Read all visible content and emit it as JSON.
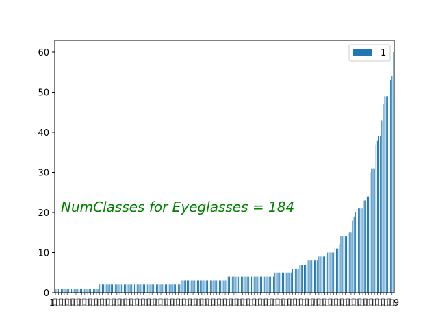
{
  "chart_data": {
    "type": "bar",
    "orientation": "vertical",
    "x_tick_labels_legible": false,
    "ylim": [
      0,
      62.9
    ],
    "yticks": [
      0,
      10,
      20,
      30,
      40,
      50,
      60
    ],
    "xtick_first": "1",
    "xtick_last": "9",
    "bar_color": "#1f77b4",
    "legend": {
      "position": "top-right",
      "label": "1"
    },
    "annotation": {
      "text": "NumClasses for Eyeglasses = 184",
      "color": "#008000"
    },
    "series": [
      {
        "name": "1",
        "values": [
          1,
          1,
          1,
          1,
          1,
          1,
          1,
          1,
          1,
          1,
          1,
          1,
          1,
          1,
          1,
          1,
          1,
          1,
          1,
          1,
          1,
          1,
          1,
          1,
          1,
          1,
          1,
          1,
          1,
          1,
          2,
          2,
          2,
          2,
          2,
          2,
          2,
          2,
          2,
          2,
          2,
          2,
          2,
          2,
          2,
          2,
          2,
          2,
          2,
          2,
          2,
          2,
          2,
          2,
          2,
          2,
          2,
          2,
          2,
          2,
          2,
          2,
          2,
          2,
          2,
          2,
          2,
          2,
          2,
          2,
          2,
          2,
          2,
          2,
          2,
          2,
          2,
          2,
          2,
          2,
          2,
          2,
          2,
          2,
          2,
          2,
          3,
          3,
          3,
          3,
          3,
          3,
          3,
          3,
          3,
          3,
          3,
          3,
          3,
          3,
          3,
          3,
          3,
          3,
          3,
          3,
          3,
          3,
          3,
          3,
          3,
          3,
          3,
          3,
          3,
          3,
          3,
          3,
          4,
          4,
          4,
          4,
          4,
          4,
          4,
          4,
          4,
          4,
          4,
          4,
          4,
          4,
          4,
          4,
          4,
          4,
          4,
          4,
          4,
          4,
          4,
          4,
          4,
          4,
          4,
          4,
          4,
          4,
          4,
          4,
          5,
          5,
          5,
          5,
          5,
          5,
          5,
          5,
          5,
          5,
          5,
          5,
          6,
          6,
          6,
          6,
          6,
          7,
          7,
          7,
          7,
          7,
          8,
          8,
          8,
          8,
          8,
          8,
          8,
          8,
          9,
          9,
          9,
          9,
          9,
          9,
          10,
          10,
          10,
          10,
          10,
          11,
          11,
          11,
          12,
          14,
          14,
          14,
          14,
          14,
          15,
          15,
          15,
          18,
          19,
          20,
          21,
          21,
          21,
          21,
          21,
          23,
          23,
          24,
          24,
          30,
          31,
          31,
          31,
          37,
          38,
          39,
          39,
          43,
          47,
          49,
          49,
          49,
          51,
          53,
          54,
          60
        ]
      }
    ]
  }
}
